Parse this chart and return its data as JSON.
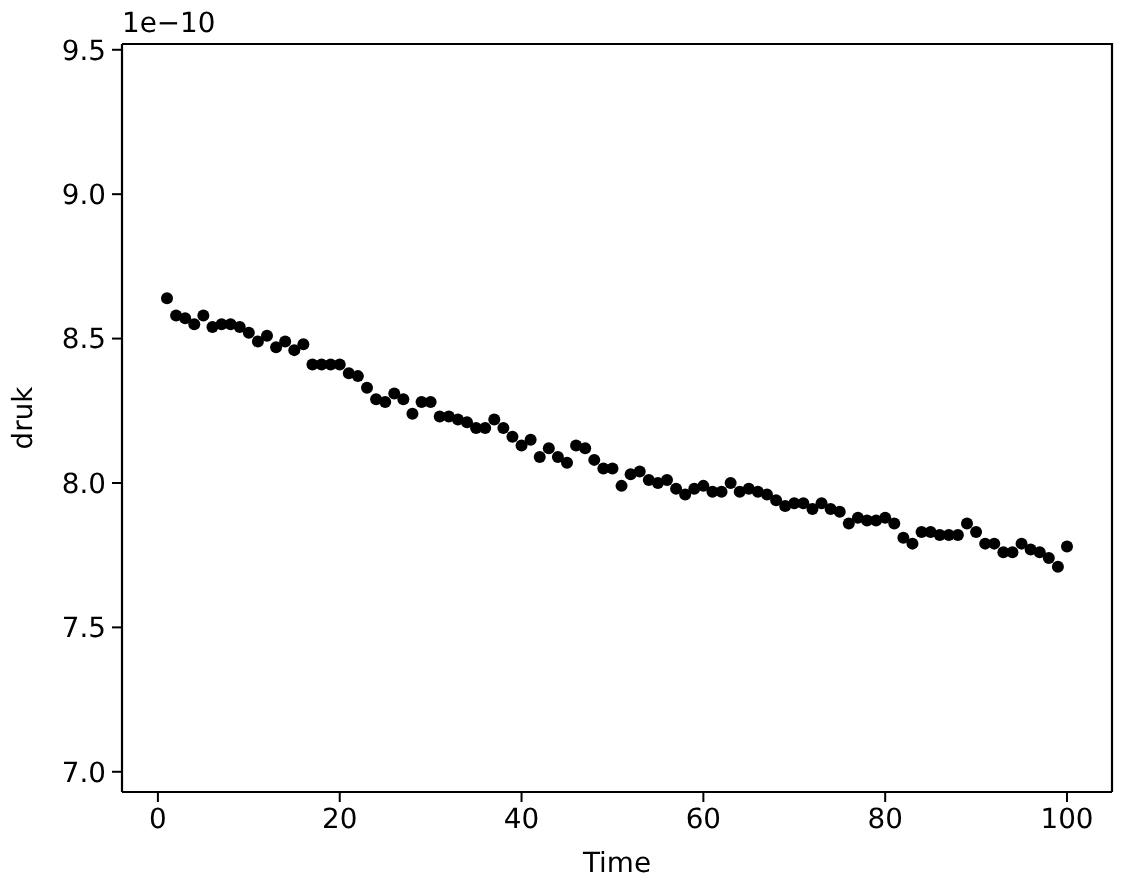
{
  "chart_data": {
    "type": "scatter",
    "xlabel": "Time",
    "ylabel": "druk",
    "annotations": [
      "1e−10"
    ],
    "color": "#000000",
    "marker": "circle",
    "x": [
      1,
      2,
      3,
      4,
      5,
      6,
      7,
      8,
      9,
      10,
      11,
      12,
      13,
      14,
      15,
      16,
      17,
      18,
      19,
      20,
      21,
      22,
      23,
      24,
      25,
      26,
      27,
      28,
      29,
      30,
      31,
      32,
      33,
      34,
      35,
      36,
      37,
      38,
      39,
      40,
      41,
      42,
      43,
      44,
      45,
      46,
      47,
      48,
      49,
      50,
      51,
      52,
      53,
      54,
      55,
      56,
      57,
      58,
      59,
      60,
      61,
      62,
      63,
      64,
      65,
      66,
      67,
      68,
      69,
      70,
      71,
      72,
      73,
      74,
      75,
      76,
      77,
      78,
      79,
      80,
      81,
      82,
      83,
      84,
      85,
      86,
      87,
      88,
      89,
      90,
      91,
      92,
      93,
      94,
      95,
      96,
      97,
      98,
      99,
      100
    ],
    "values": [
      8.64,
      8.58,
      8.57,
      8.55,
      8.58,
      8.54,
      8.55,
      8.55,
      8.54,
      8.52,
      8.49,
      8.51,
      8.47,
      8.49,
      8.46,
      8.48,
      8.41,
      8.41,
      8.41,
      8.41,
      8.38,
      8.37,
      8.33,
      8.29,
      8.28,
      8.31,
      8.29,
      8.24,
      8.28,
      8.28,
      8.23,
      8.23,
      8.22,
      8.21,
      8.19,
      8.19,
      8.22,
      8.19,
      8.16,
      8.13,
      8.15,
      8.09,
      8.12,
      8.09,
      8.07,
      8.13,
      8.12,
      8.08,
      8.05,
      8.05,
      7.99,
      8.03,
      8.04,
      8.01,
      8.0,
      8.01,
      7.98,
      7.96,
      7.98,
      7.99,
      7.97,
      7.97,
      8.0,
      7.97,
      7.98,
      7.97,
      7.96,
      7.94,
      7.92,
      7.93,
      7.93,
      7.91,
      7.93,
      7.91,
      7.9,
      7.86,
      7.88,
      7.87,
      7.87,
      7.88,
      7.86,
      7.81,
      7.79,
      7.83,
      7.83,
      7.82,
      7.82,
      7.82,
      7.86,
      7.83,
      7.79,
      7.79,
      7.76,
      7.76,
      7.79,
      7.77,
      7.76,
      7.74,
      7.71,
      7.78
    ],
    "xlim": [
      -3.95,
      104.95
    ],
    "xticks": [
      0,
      20,
      40,
      60,
      80,
      100
    ],
    "ylim": [
      6.93,
      9.52
    ],
    "yticks": [
      {
        "value": 7.0,
        "label": "7.0"
      },
      {
        "value": 7.5,
        "label": "7.5"
      },
      {
        "value": 8.0,
        "label": "8.0"
      },
      {
        "value": 8.5,
        "label": "8.5"
      },
      {
        "value": 9.0,
        "label": "9.0"
      },
      {
        "value": 9.5,
        "label": "9.5"
      }
    ]
  }
}
